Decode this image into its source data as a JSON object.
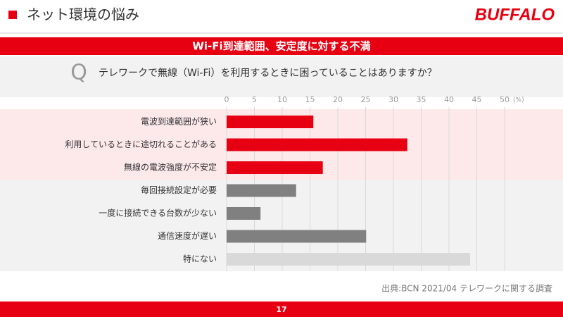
{
  "header": {
    "title": "ネット環境の悩み",
    "logo": "BUFFALO"
  },
  "banner": "Wi-Fi到達範囲、安定度に対する不満",
  "question": {
    "mark": "Q",
    "text": "テレワークで無線（Wi-Fi）を利用するときに困っていることはありますか？"
  },
  "chart_data": {
    "type": "bar",
    "orientation": "horizontal",
    "categories": [
      "電波到達範囲が狭い",
      "利用しているときに途切れることがある",
      "無線の電波強度が不安定",
      "毎回接続設定が必要",
      "一度に接続できる台数が少ない",
      "通信速度が遅い",
      "特にない"
    ],
    "values": [
      15.6,
      32.5,
      17.3,
      12.5,
      6.1,
      25.1,
      43.8
    ],
    "colors": [
      "#e60012",
      "#e60012",
      "#e60012",
      "#808080",
      "#808080",
      "#808080",
      "#d9d9d9"
    ],
    "xlim": [
      0,
      50
    ],
    "xticks": [
      0,
      5,
      10,
      15,
      20,
      25,
      30,
      35,
      40,
      45,
      50
    ],
    "x_unit": "(%)",
    "grid": true
  },
  "source": "出典:BCN 2021/04 テレワークに関する調査",
  "page_number": "17"
}
